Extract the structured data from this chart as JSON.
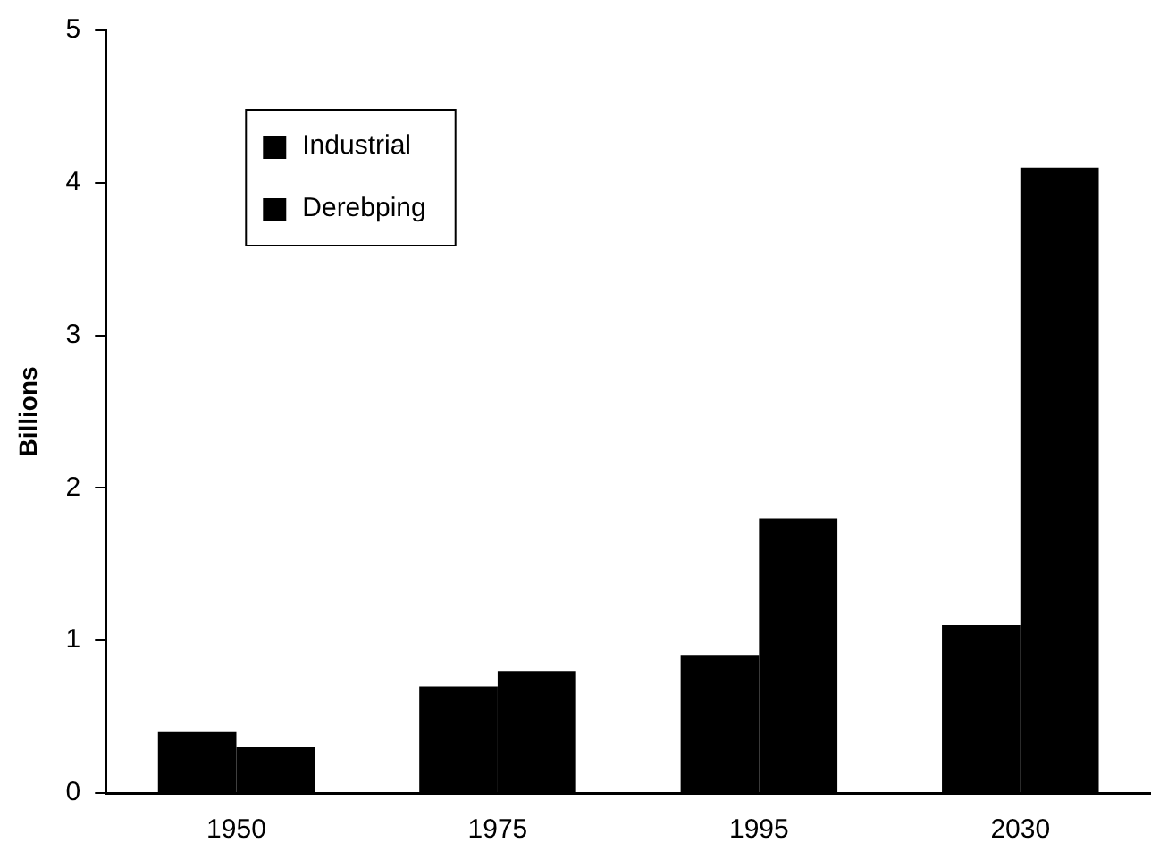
{
  "chart_data": {
    "type": "bar",
    "ylabel": "Billions",
    "categories": [
      "1950",
      "1975",
      "1995",
      "2030"
    ],
    "series": [
      {
        "name": "Industrial",
        "color": "#000000",
        "values": [
          0.4,
          0.7,
          0.9,
          1.1
        ]
      },
      {
        "name": "Derebping",
        "color": "#000000",
        "values": [
          0.3,
          0.8,
          1.8,
          4.1
        ]
      }
    ],
    "ylim": [
      0,
      5
    ],
    "yticks": [
      0,
      1,
      2,
      3,
      4,
      5
    ],
    "grid": false,
    "legend": "top left"
  }
}
